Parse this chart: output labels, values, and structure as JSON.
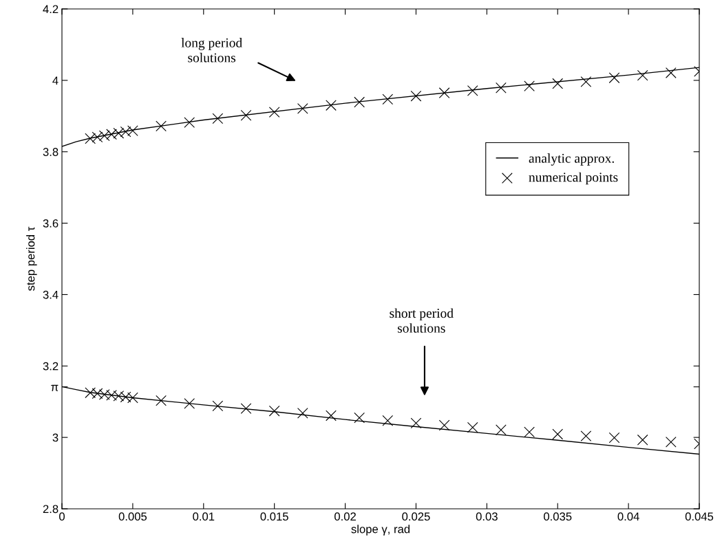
{
  "chart_data": {
    "type": "line",
    "xlabel": "slope γ, rad",
    "ylabel": "step period τ",
    "xlim": [
      0,
      0.045
    ],
    "xticks": [
      0,
      0.005,
      0.01,
      0.015,
      0.02,
      0.025,
      0.03,
      0.035,
      0.04,
      0.045
    ],
    "ylim": [
      2.8,
      4.2
    ],
    "yticks": [
      {
        "value": 2.8,
        "label": "2.8"
      },
      3,
      3.2,
      {
        "value": 3.14159,
        "label": "π"
      },
      3.4,
      3.6,
      3.8,
      4,
      4.2
    ],
    "legend": "right",
    "grid": false,
    "series": [
      {
        "name": "analytic approx.",
        "color": "#000000",
        "line_style": "solid",
        "marker": "none",
        "x": [
          0,
          0.001,
          0.002,
          0.005,
          0.01,
          0.02,
          0.03,
          0.04,
          0.045
        ],
        "values": [
          3.815,
          3.828,
          3.838,
          3.861,
          3.889,
          3.936,
          3.977,
          4.015,
          4.036
        ]
      },
      {
        "color": "#000000",
        "line_style": "solid",
        "marker": "none",
        "x": [
          0,
          0.001,
          0.002,
          0.005,
          0.01,
          0.015,
          0.02,
          0.025,
          0.03,
          0.035,
          0.04,
          0.045
        ],
        "values": [
          3.142,
          3.134,
          3.126,
          3.111,
          3.091,
          3.072,
          3.05,
          3.03,
          3.011,
          2.992,
          2.972,
          2.953
        ]
      },
      {
        "name": "numerical points",
        "type": "scatter",
        "color": "#000000",
        "marker": "cross",
        "x": [
          0.002,
          0.0025,
          0.003,
          0.0035,
          0.004,
          0.0045,
          0.005,
          0.007,
          0.009,
          0.011,
          0.013,
          0.015,
          0.017,
          0.019,
          0.021,
          0.023,
          0.025,
          0.027,
          0.029,
          0.031,
          0.033,
          0.035,
          0.037,
          0.039,
          0.041,
          0.043,
          0.045
        ],
        "values": [
          3.837,
          3.841,
          3.845,
          3.849,
          3.852,
          3.856,
          3.859,
          3.872,
          3.882,
          3.893,
          3.902,
          3.911,
          3.921,
          3.93,
          3.939,
          3.947,
          3.956,
          3.965,
          3.971,
          3.979,
          3.984,
          3.991,
          3.996,
          4.007,
          4.014,
          4.021,
          4.025
        ]
      },
      {
        "type": "scatter",
        "color": "#000000",
        "marker": "cross",
        "x": [
          0.002,
          0.0025,
          0.003,
          0.0035,
          0.004,
          0.0045,
          0.005,
          0.007,
          0.009,
          0.011,
          0.013,
          0.015,
          0.017,
          0.019,
          0.021,
          0.023,
          0.025,
          0.027,
          0.029,
          0.031,
          0.033,
          0.035,
          0.037,
          0.039,
          0.041,
          0.043,
          0.045
        ],
        "values": [
          3.125,
          3.123,
          3.12,
          3.118,
          3.116,
          3.113,
          3.111,
          3.103,
          3.095,
          3.088,
          3.081,
          3.074,
          3.068,
          3.061,
          3.055,
          3.047,
          3.04,
          3.034,
          3.028,
          3.021,
          3.015,
          3.009,
          3.004,
          2.999,
          2.993,
          2.987,
          2.982
        ]
      }
    ],
    "annotations": [
      "long period\nsolutions",
      "short period\nsolutions"
    ]
  }
}
